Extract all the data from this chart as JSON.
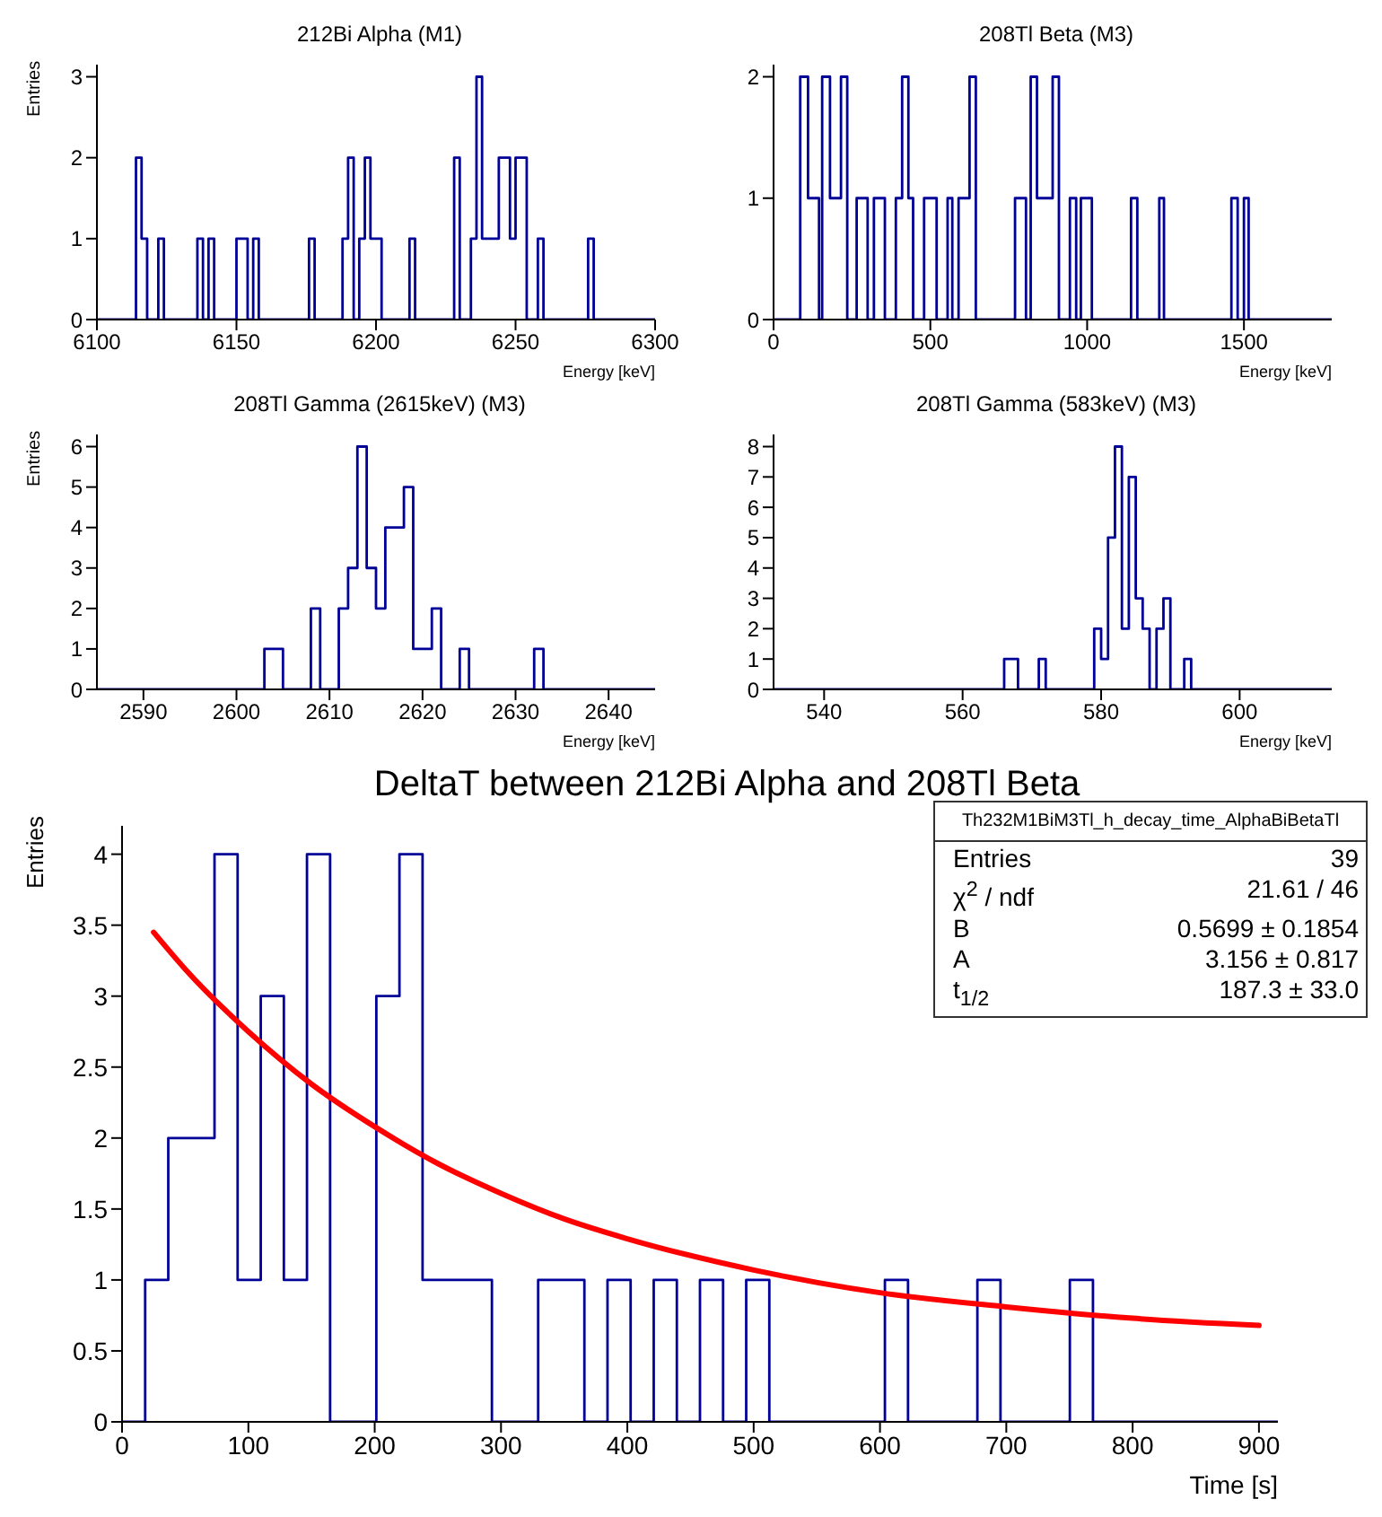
{
  "chart_data": [
    {
      "type": "histogram",
      "title": "212Bi Alpha (M1)",
      "xlabel": "Energy [keV]",
      "ylabel": "Entries",
      "color": "#000099",
      "xlim": [
        6100,
        6300
      ],
      "xticks": [
        6100,
        6150,
        6200,
        6250,
        6300
      ],
      "ylim": [
        0,
        3.15
      ],
      "yticks": [
        0,
        1,
        2,
        3
      ],
      "bins": [
        6100,
        6114,
        6116,
        6118,
        6122,
        6124,
        6136,
        6138,
        6140,
        6142,
        6150,
        6154,
        6156,
        6158,
        6176,
        6178,
        6188,
        6190,
        6192,
        6194,
        6196,
        6198,
        6202,
        6212,
        6214,
        6228,
        6230,
        6234,
        6236,
        6238,
        6244,
        6248,
        6250,
        6254,
        6258,
        6260,
        6276,
        6278,
        6300
      ],
      "values": [
        0,
        2,
        1,
        0,
        1,
        0,
        1,
        0,
        1,
        0,
        1,
        0,
        1,
        0,
        1,
        0,
        1,
        2,
        0,
        1,
        2,
        1,
        0,
        1,
        0,
        2,
        0,
        1,
        3,
        1,
        2,
        1,
        2,
        0,
        1,
        0,
        1,
        0
      ]
    },
    {
      "type": "histogram",
      "title": "208Tl Beta (M3)",
      "xlabel": "Energy [keV]",
      "color": "#000099",
      "xlim": [
        0,
        1780
      ],
      "xticks": [
        0,
        500,
        1000,
        1500
      ],
      "ylim": [
        0,
        2.1
      ],
      "yticks": [
        0,
        1,
        2
      ],
      "bins": [
        0,
        85,
        110,
        145,
        155,
        180,
        215,
        235,
        265,
        300,
        320,
        355,
        390,
        410,
        430,
        445,
        480,
        520,
        555,
        570,
        590,
        625,
        645,
        770,
        805,
        820,
        840,
        890,
        910,
        945,
        965,
        980,
        1015,
        1140,
        1160,
        1230,
        1245,
        1460,
        1480,
        1500,
        1515,
        1780
      ],
      "values": [
        0,
        2,
        1,
        0,
        2,
        1,
        2,
        0,
        1,
        0,
        1,
        0,
        1,
        2,
        1,
        0,
        1,
        0,
        1,
        0,
        1,
        2,
        0,
        1,
        0,
        2,
        1,
        2,
        0,
        1,
        0,
        1,
        0,
        1,
        0,
        1,
        0,
        1,
        0,
        1,
        0
      ]
    },
    {
      "type": "histogram",
      "title": "208Tl Gamma (2615keV) (M3)",
      "xlabel": "Energy [keV]",
      "ylabel": "Entries",
      "color": "#000099",
      "xlim": [
        2585,
        2645
      ],
      "xticks": [
        2590,
        2600,
        2610,
        2620,
        2630,
        2640
      ],
      "ylim": [
        0,
        6.3
      ],
      "yticks": [
        0,
        1,
        2,
        3,
        4,
        5,
        6
      ],
      "bins": [
        2585,
        2603,
        2605,
        2608,
        2609,
        2611,
        2612,
        2613,
        2614,
        2615,
        2616,
        2618,
        2619,
        2621,
        2622,
        2624,
        2625,
        2632,
        2633,
        2645
      ],
      "values": [
        0,
        1,
        0,
        2,
        0,
        2,
        3,
        6,
        3,
        2,
        4,
        5,
        1,
        2,
        0,
        1,
        0,
        1,
        0
      ]
    },
    {
      "type": "histogram",
      "title": "208Tl Gamma (583keV) (M3)",
      "xlabel": "Energy [keV]",
      "color": "#000099",
      "xlim": [
        532.7,
        613.3
      ],
      "xticks": [
        540,
        560,
        580,
        600
      ],
      "ylim": [
        0,
        8.4
      ],
      "yticks": [
        0,
        1,
        2,
        3,
        4,
        5,
        6,
        7,
        8
      ],
      "bins": [
        532.7,
        566,
        568,
        571,
        572,
        579,
        580,
        581,
        582,
        583,
        584,
        585,
        586,
        587,
        588,
        589,
        590,
        592,
        593,
        613.3
      ],
      "values": [
        0,
        1,
        0,
        1,
        0,
        2,
        1,
        5,
        8,
        2,
        7,
        3,
        2,
        0,
        2,
        3,
        0,
        1,
        0
      ]
    },
    {
      "type": "histogram",
      "title": "DeltaT between 212Bi Alpha and 208Tl Beta",
      "xlabel": "Time [s]",
      "ylabel": "Entries",
      "xlim": [
        0,
        915
      ],
      "xticks": [
        0,
        100,
        200,
        300,
        400,
        500,
        600,
        700,
        800,
        900
      ],
      "ylim": [
        0,
        4.2
      ],
      "yticks": [
        0,
        0.5,
        1,
        1.5,
        2,
        2.5,
        3,
        3.5,
        4
      ],
      "annotations": [
        "Th232M1BiM3Tl_h_decay_time_AlphaBiBetaTl",
        "Entries",
        "39",
        "χ$^{2}$ / ndf",
        "21.61 / 46",
        "B",
        "0.5699 ± 0.1854",
        "A",
        "3.156 ± 0.817",
        "t$_{1/2}$",
        "187.3 ± 33.0"
      ],
      "series": [
        {
          "color": "#000099",
          "bins": [
            0,
            18.3,
            36.6,
            73.2,
            91.5,
            109.8,
            128.1,
            146.4,
            164.7,
            201.3,
            219.6,
            237.9,
            292.8,
            329.4,
            366,
            384.3,
            402.6,
            420.9,
            439.2,
            457.5,
            475.8,
            494.1,
            512.4,
            603.9,
            622.2,
            677.1,
            695.4,
            750.3,
            768.6,
            915
          ],
          "values": [
            0,
            1,
            2,
            4,
            1,
            3,
            1,
            4,
            0,
            3,
            4,
            1,
            0,
            1,
            0,
            1,
            0,
            1,
            0,
            1,
            0,
            1,
            0,
            1,
            0,
            1,
            0,
            1,
            0
          ]
        },
        {
          "type": "line",
          "color": "#ff0000",
          "x": [
            25,
            50,
            100,
            150,
            200,
            250,
            300,
            350,
            400,
            500,
            600,
            700,
            800,
            900
          ],
          "values": [
            3.45,
            3.19,
            2.75,
            2.38,
            2.08,
            1.82,
            1.61,
            1.43,
            1.29,
            1.07,
            0.91,
            0.81,
            0.73,
            0.68
          ]
        }
      ]
    }
  ]
}
